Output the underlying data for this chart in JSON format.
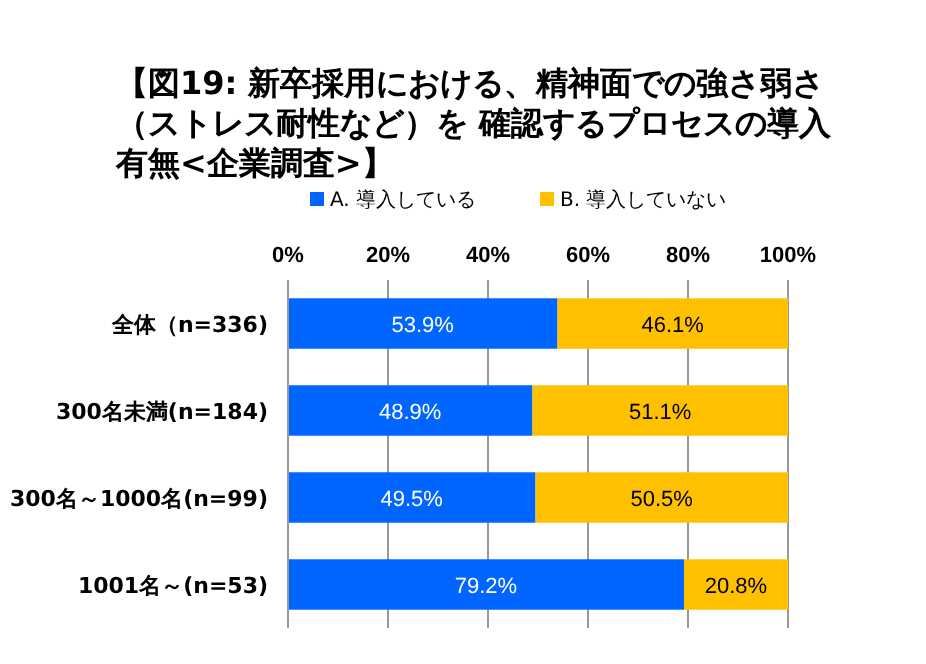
{
  "chart_data": {
    "type": "bar",
    "orientation": "horizontal",
    "stacked": true,
    "title": "【図19: 新卒採用における、精神面での強さ弱さ（ストレス耐性など）を 確認するプロセスの導入有無<企業調査>】",
    "categories": [
      "全体（n=336)",
      "300名未満(n=184)",
      "300名～1000名(n=99)",
      "1001名～(n=53)"
    ],
    "series": [
      {
        "name": "A. 導入している",
        "color": "#0066ff",
        "values": [
          53.9,
          48.9,
          49.5,
          79.2
        ],
        "value_labels": [
          "53.9%",
          "48.9%",
          "49.5%",
          "79.2%"
        ]
      },
      {
        "name": "B. 導入していない",
        "color": "#ffc000",
        "values": [
          46.1,
          51.1,
          50.5,
          20.8
        ],
        "value_labels": [
          "46.1%",
          "51.1%",
          "50.5%",
          "20.8%"
        ]
      }
    ],
    "xlim": [
      0,
      100
    ],
    "xticks": [
      {
        "value": 0,
        "label": "0%"
      },
      {
        "value": 20,
        "label": "20%"
      },
      {
        "value": 40,
        "label": "40%"
      },
      {
        "value": 60,
        "label": "60%"
      },
      {
        "value": 80,
        "label": "80%"
      },
      {
        "value": 100,
        "label": "100%"
      }
    ],
    "grid": "x",
    "legend": "top"
  }
}
